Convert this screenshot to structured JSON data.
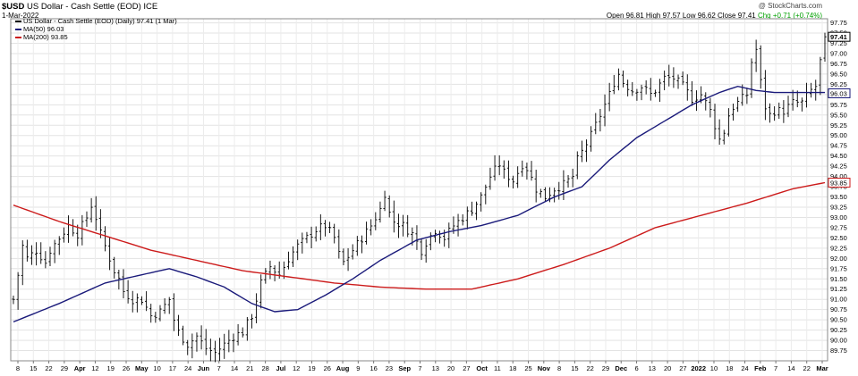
{
  "header": {
    "symbol": "$USD",
    "description": "US Dollar - Cash Settle (EOD) ICE",
    "date": "1-Mar-2022",
    "credit": "@ StockCharts.com",
    "ohlc": {
      "open": "Open 96.81",
      "high": "High 97.57",
      "low": "Low 96.62",
      "close": "Close 97.41",
      "chg": "Chg +0.71 (+0.74%)",
      "chg_color": "#00a000"
    }
  },
  "legend": [
    {
      "text": "US Dollar - Cash Settle (EOD) (Daily) 97.41 (1 Mar)",
      "color": "#000000",
      "marker": "bar"
    },
    {
      "text": "MA(50) 96.03",
      "color": "#1a1a7a",
      "marker": "line"
    },
    {
      "text": "MA(200) 93.85",
      "color": "#cc1b1b",
      "marker": "line"
    }
  ],
  "chart_data": {
    "type": "ohlc",
    "ylim": [
      89.5,
      97.85
    ],
    "y_ticks": [
      "89.75",
      "90.00",
      "90.25",
      "90.50",
      "90.75",
      "91.00",
      "91.25",
      "91.50",
      "91.75",
      "92.00",
      "92.25",
      "92.50",
      "92.75",
      "93.00",
      "93.25",
      "93.50",
      "93.75",
      "94.00",
      "94.25",
      "94.50",
      "94.75",
      "95.00",
      "95.25",
      "95.50",
      "95.75",
      "96.00",
      "96.25",
      "96.50",
      "96.75",
      "97.00",
      "97.25",
      "97.50",
      "97.75"
    ],
    "x_labels": [
      {
        "label": "8",
        "bold": false
      },
      {
        "label": "15",
        "bold": false
      },
      {
        "label": "22",
        "bold": false
      },
      {
        "label": "29",
        "bold": false
      },
      {
        "label": "Apr",
        "bold": true
      },
      {
        "label": "12",
        "bold": false
      },
      {
        "label": "19",
        "bold": false
      },
      {
        "label": "26",
        "bold": false
      },
      {
        "label": "May",
        "bold": true
      },
      {
        "label": "10",
        "bold": false
      },
      {
        "label": "17",
        "bold": false
      },
      {
        "label": "24",
        "bold": false
      },
      {
        "label": "Jun",
        "bold": true
      },
      {
        "label": "7",
        "bold": false
      },
      {
        "label": "14",
        "bold": false
      },
      {
        "label": "21",
        "bold": false
      },
      {
        "label": "28",
        "bold": false
      },
      {
        "label": "Jul",
        "bold": true
      },
      {
        "label": "12",
        "bold": false
      },
      {
        "label": "19",
        "bold": false
      },
      {
        "label": "26",
        "bold": false
      },
      {
        "label": "Aug",
        "bold": true
      },
      {
        "label": "9",
        "bold": false
      },
      {
        "label": "16",
        "bold": false
      },
      {
        "label": "23",
        "bold": false
      },
      {
        "label": "Sep",
        "bold": true
      },
      {
        "label": "7",
        "bold": false
      },
      {
        "label": "13",
        "bold": false
      },
      {
        "label": "20",
        "bold": false
      },
      {
        "label": "27",
        "bold": false
      },
      {
        "label": "Oct",
        "bold": true
      },
      {
        "label": "11",
        "bold": false
      },
      {
        "label": "18",
        "bold": false
      },
      {
        "label": "25",
        "bold": false
      },
      {
        "label": "Nov",
        "bold": true
      },
      {
        "label": "8",
        "bold": false
      },
      {
        "label": "15",
        "bold": false
      },
      {
        "label": "22",
        "bold": false
      },
      {
        "label": "29",
        "bold": false
      },
      {
        "label": "Dec",
        "bold": true
      },
      {
        "label": "6",
        "bold": false
      },
      {
        "label": "13",
        "bold": false
      },
      {
        "label": "20",
        "bold": false
      },
      {
        "label": "27",
        "bold": false
      },
      {
        "label": "2022",
        "bold": true
      },
      {
        "label": "10",
        "bold": false
      },
      {
        "label": "18",
        "bold": false
      },
      {
        "label": "24",
        "bold": false
      },
      {
        "label": "Feb",
        "bold": true
      },
      {
        "label": "7",
        "bold": false
      },
      {
        "label": "14",
        "bold": false
      },
      {
        "label": "22",
        "bold": false
      },
      {
        "label": "Mar",
        "bold": true
      }
    ],
    "price_path": [
      [
        0,
        91.0
      ],
      [
        1,
        91.6
      ],
      [
        2,
        92.3
      ],
      [
        3,
        92.0
      ],
      [
        5,
        92.2
      ],
      [
        7,
        91.9
      ],
      [
        8,
        92.2
      ],
      [
        10,
        92.5
      ],
      [
        12,
        92.8
      ],
      [
        14,
        92.6
      ],
      [
        16,
        93.0
      ],
      [
        17,
        93.3
      ],
      [
        18,
        93.0
      ],
      [
        19,
        92.6
      ],
      [
        20,
        92.3
      ],
      [
        21,
        92.0
      ],
      [
        22,
        91.7
      ],
      [
        23,
        91.5
      ],
      [
        24,
        91.2
      ],
      [
        26,
        91.0
      ],
      [
        28,
        91.0
      ],
      [
        30,
        90.6
      ],
      [
        32,
        90.7
      ],
      [
        34,
        91.0
      ],
      [
        35,
        90.5
      ],
      [
        36,
        90.2
      ],
      [
        38,
        89.9
      ],
      [
        40,
        90.1
      ],
      [
        42,
        89.8
      ],
      [
        44,
        89.7
      ],
      [
        46,
        89.9
      ],
      [
        48,
        90.1
      ],
      [
        50,
        90.2
      ],
      [
        52,
        90.6
      ],
      [
        54,
        91.4
      ],
      [
        56,
        91.8
      ],
      [
        58,
        91.6
      ],
      [
        60,
        92.0
      ],
      [
        62,
        92.3
      ],
      [
        64,
        92.5
      ],
      [
        66,
        92.7
      ],
      [
        68,
        92.8
      ],
      [
        70,
        92.5
      ],
      [
        71,
        92.1
      ],
      [
        72,
        91.9
      ],
      [
        74,
        92.2
      ],
      [
        76,
        92.5
      ],
      [
        78,
        92.8
      ],
      [
        80,
        93.2
      ],
      [
        81,
        93.6
      ],
      [
        82,
        93.1
      ],
      [
        83,
        92.9
      ],
      [
        85,
        92.8
      ],
      [
        87,
        92.6
      ],
      [
        89,
        92.2
      ],
      [
        90,
        92.4
      ],
      [
        92,
        92.7
      ],
      [
        94,
        92.5
      ],
      [
        96,
        92.8
      ],
      [
        98,
        93.0
      ],
      [
        100,
        93.2
      ],
      [
        102,
        93.5
      ],
      [
        104,
        94.0
      ],
      [
        106,
        94.3
      ],
      [
        107,
        94.1
      ],
      [
        109,
        93.9
      ],
      [
        111,
        94.3
      ],
      [
        112,
        94.2
      ],
      [
        114,
        93.7
      ],
      [
        116,
        93.5
      ],
      [
        118,
        93.7
      ],
      [
        120,
        93.8
      ],
      [
        122,
        94.0
      ],
      [
        123,
        94.4
      ],
      [
        124,
        94.6
      ],
      [
        126,
        95.0
      ],
      [
        128,
        95.5
      ],
      [
        130,
        96.0
      ],
      [
        131,
        96.3
      ],
      [
        132,
        96.5
      ],
      [
        133,
        96.3
      ],
      [
        135,
        96.1
      ],
      [
        137,
        96.2
      ],
      [
        139,
        96.0
      ],
      [
        140,
        96.1
      ],
      [
        142,
        96.4
      ],
      [
        144,
        96.4
      ],
      [
        146,
        96.2
      ],
      [
        148,
        95.9
      ],
      [
        150,
        96.0
      ],
      [
        152,
        95.6
      ],
      [
        154,
        94.9
      ],
      [
        155,
        95.1
      ],
      [
        156,
        95.5
      ],
      [
        157,
        95.7
      ],
      [
        158,
        95.8
      ],
      [
        160,
        96.0
      ],
      [
        161,
        96.8
      ],
      [
        162,
        97.1
      ],
      [
        163,
        96.3
      ],
      [
        164,
        95.7
      ],
      [
        165,
        95.5
      ],
      [
        166,
        95.6
      ],
      [
        168,
        95.6
      ],
      [
        170,
        95.8
      ],
      [
        172,
        95.8
      ],
      [
        174,
        96.1
      ],
      [
        175,
        96.2
      ],
      [
        176,
        96.8
      ],
      [
        177,
        97.41
      ]
    ],
    "ma50_path": [
      [
        0,
        90.45
      ],
      [
        10,
        90.9
      ],
      [
        20,
        91.4
      ],
      [
        28,
        91.6
      ],
      [
        34,
        91.75
      ],
      [
        40,
        91.55
      ],
      [
        46,
        91.3
      ],
      [
        52,
        90.9
      ],
      [
        57,
        90.7
      ],
      [
        62,
        90.75
      ],
      [
        68,
        91.1
      ],
      [
        74,
        91.5
      ],
      [
        80,
        91.95
      ],
      [
        88,
        92.45
      ],
      [
        95,
        92.65
      ],
      [
        102,
        92.8
      ],
      [
        110,
        93.05
      ],
      [
        118,
        93.5
      ],
      [
        124,
        93.75
      ],
      [
        130,
        94.4
      ],
      [
        136,
        94.95
      ],
      [
        142,
        95.35
      ],
      [
        148,
        95.75
      ],
      [
        154,
        96.05
      ],
      [
        158,
        96.2
      ],
      [
        162,
        96.1
      ],
      [
        166,
        96.05
      ],
      [
        172,
        96.05
      ],
      [
        177,
        96.05
      ]
    ],
    "ma200_path": [
      [
        0,
        93.3
      ],
      [
        10,
        92.9
      ],
      [
        20,
        92.55
      ],
      [
        30,
        92.2
      ],
      [
        40,
        91.95
      ],
      [
        50,
        91.7
      ],
      [
        60,
        91.55
      ],
      [
        70,
        91.4
      ],
      [
        80,
        91.3
      ],
      [
        90,
        91.25
      ],
      [
        100,
        91.25
      ],
      [
        110,
        91.5
      ],
      [
        120,
        91.85
      ],
      [
        130,
        92.25
      ],
      [
        140,
        92.75
      ],
      [
        150,
        93.05
      ],
      [
        160,
        93.35
      ],
      [
        170,
        93.7
      ],
      [
        177,
        93.85
      ]
    ],
    "price_label": {
      "text": "97.41",
      "value": 97.41
    },
    "ma50_label": {
      "text": "96.03",
      "value": 96.03
    },
    "ma200_label": {
      "text": "93.85",
      "value": 93.85
    }
  }
}
